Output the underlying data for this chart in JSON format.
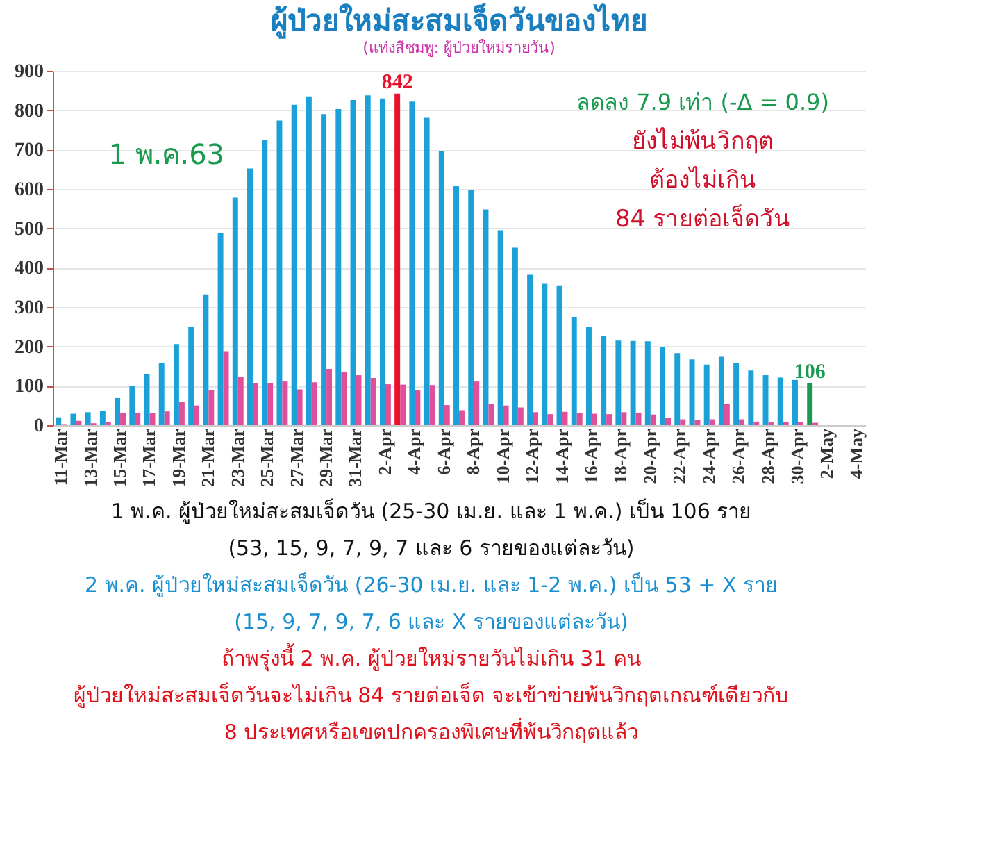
{
  "chart_data": {
    "type": "bar",
    "title": "ผู้ป่วยใหม่สะสมเจ็ดวันของไทย",
    "subtitle": "(แท่งสีชมพู: ผู้ป่วยใหม่รายวัน)",
    "categories": [
      "11-Mar",
      null,
      "13-Mar",
      null,
      "15-Mar",
      null,
      "17-Mar",
      null,
      "19-Mar",
      null,
      "21-Mar",
      null,
      "23-Mar",
      null,
      "25-Mar",
      null,
      "27-Mar",
      null,
      "29-Mar",
      null,
      "31-Mar",
      null,
      "2-Apr",
      null,
      "4-Apr",
      null,
      "6-Apr",
      null,
      "8-Apr",
      null,
      "10-Apr",
      null,
      "12-Apr",
      null,
      "14-Apr",
      null,
      "16-Apr",
      null,
      "18-Apr",
      null,
      "20-Apr",
      null,
      "22-Apr",
      null,
      "24-Apr",
      null,
      "26-Apr",
      null,
      "28-Apr",
      null,
      "30-Apr",
      null,
      "2-May",
      null,
      "4-May"
    ],
    "series": [
      {
        "colors": [
          "#1ba1d8",
          "#1ba1d8",
          "#1ba1d8",
          "#1ba1d8",
          "#1ba1d8",
          "#1ba1d8",
          "#1ba1d8",
          "#1ba1d8",
          "#1ba1d8",
          "#1ba1d8",
          "#1ba1d8",
          "#1ba1d8",
          "#1ba1d8",
          "#1ba1d8",
          "#1ba1d8",
          "#1ba1d8",
          "#1ba1d8",
          "#1ba1d8",
          "#1ba1d8",
          "#1ba1d8",
          "#1ba1d8",
          "#1ba1d8",
          "#1ba1d8",
          "#e8102a",
          "#1ba1d8",
          "#1ba1d8",
          "#1ba1d8",
          "#1ba1d8",
          "#1ba1d8",
          "#1ba1d8",
          "#1ba1d8",
          "#1ba1d8",
          "#1ba1d8",
          "#1ba1d8",
          "#1ba1d8",
          "#1ba1d8",
          "#1ba1d8",
          "#1ba1d8",
          "#1ba1d8",
          "#1ba1d8",
          "#1ba1d8",
          "#1ba1d8",
          "#1ba1d8",
          "#1ba1d8",
          "#1ba1d8",
          "#1ba1d8",
          "#1ba1d8",
          "#1ba1d8",
          "#1ba1d8",
          "#1ba1d8",
          "#1ba1d8",
          "#1a9a50",
          "#1ba1d8",
          "#1ba1d8",
          "#1ba1d8"
        ],
        "values": [
          20,
          29,
          33,
          37,
          69,
          100,
          130,
          157,
          206,
          250,
          332,
          487,
          578,
          652,
          724,
          774,
          814,
          835,
          790,
          803,
          826,
          838,
          830,
          842,
          822,
          781,
          696,
          607,
          598,
          548,
          495,
          451,
          382,
          359,
          355,
          274,
          249,
          227,
          215,
          214,
          213,
          198,
          183,
          167,
          154,
          174,
          157,
          139,
          127,
          121,
          115,
          106,
          null,
          null,
          null
        ],
        "value_labels": [
          null,
          null,
          null,
          null,
          null,
          null,
          null,
          null,
          null,
          null,
          null,
          null,
          null,
          null,
          null,
          null,
          null,
          null,
          null,
          null,
          null,
          null,
          null,
          "842",
          null,
          null,
          null,
          null,
          null,
          null,
          null,
          null,
          null,
          null,
          null,
          null,
          null,
          null,
          null,
          null,
          null,
          null,
          null,
          null,
          null,
          null,
          null,
          null,
          null,
          null,
          null,
          "106",
          null,
          null,
          null
        ]
      },
      {
        "color": "#e0509a",
        "values": [
          1,
          11,
          5,
          7,
          32,
          32,
          30,
          35,
          60,
          50,
          89,
          188,
          122,
          106,
          107,
          111,
          91,
          109,
          143,
          136,
          127,
          120,
          104,
          103,
          89,
          102,
          51,
          38,
          111,
          54,
          50,
          45,
          33,
          28,
          34,
          30,
          29,
          28,
          33,
          32,
          27,
          19,
          15,
          13,
          15,
          53,
          15,
          9,
          7,
          9,
          7,
          6,
          null,
          null,
          null
        ]
      }
    ],
    "ylim": [
      0,
      900
    ],
    "yticks": [
      0,
      100,
      200,
      300,
      400,
      500,
      600,
      700,
      800,
      900
    ],
    "grid": "y",
    "annotations": [
      "1 พ.ค.63",
      "ลดลง 7.9 เท่า (-Δ = 0.9)",
      "ยังไม่พ้นวิกฤต",
      "ต้องไม่เกิน",
      "84 รายต่อเจ็ดวัน",
      "1 พ.ค. ผู้ป่วยใหม่สะสมเจ็ดวัน (25-30 เม.ย. และ 1 พ.ค.) เป็น 106 ราย",
      "(53, 15, 9, 7, 9, 7 และ 6 รายของแต่ละวัน)",
      "2 พ.ค. ผู้ป่วยใหม่สะสมเจ็ดวัน (26-30 เม.ย. และ 1-2 พ.ค.) เป็น 53 + X ราย",
      "(15, 9, 7, 9, 7, 6 และ X รายของแต่ละวัน)",
      "ถ้าพรุ่งนี้ 2 พ.ค. ผู้ป่วยใหม่รายวันไม่เกิน 31 คน",
      "ผู้ป่วยใหม่สะสมเจ็ดวันจะไม่เกิน 84 รายต่อเจ็ด จะเข้าข่ายพ้นวิกฤตเกณฑ์เดียวกับ",
      "8 ประเทศหรือเขตปกครองพิเศษที่พ้นวิกฤตแล้ว"
    ]
  }
}
